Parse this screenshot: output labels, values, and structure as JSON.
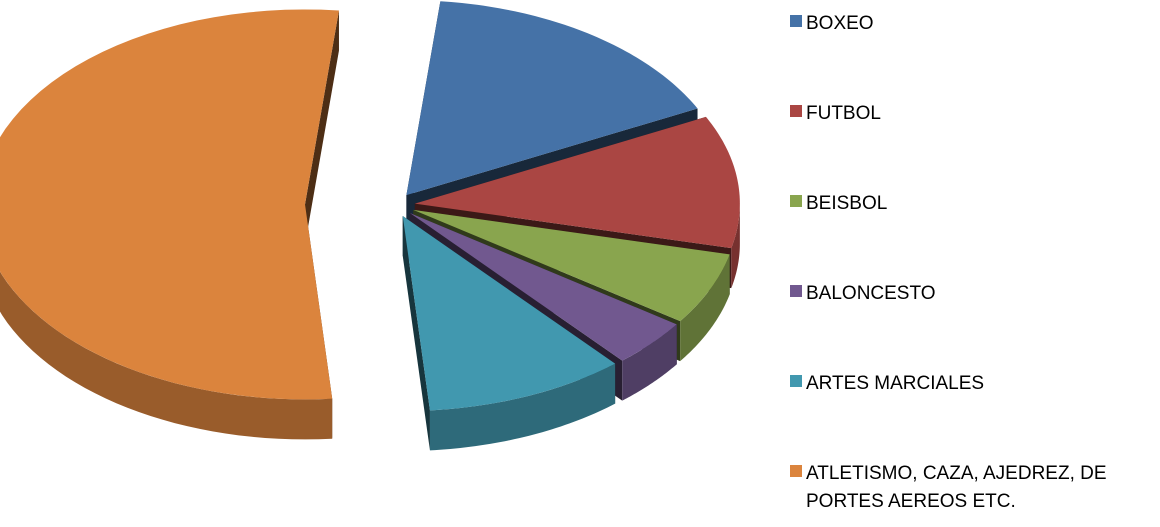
{
  "chart_data": {
    "type": "pie",
    "title": "",
    "style": "3d-exploded",
    "legend_position": "right",
    "categories": [
      "BOXEO",
      "FUTBOL",
      "BEISBOL",
      "BALONCESTO",
      "ARTES MARCIALES",
      "ATLETISMO, CAZA, AJEDREZ, DEPORTES AEREOS ETC."
    ],
    "legend_lines": [
      [
        "BOXEO"
      ],
      [
        "FUTBOL"
      ],
      [
        "BEISBOL"
      ],
      [
        "BALONCESTO"
      ],
      [
        "ARTES MARCIALES"
      ],
      [
        "ATLETISMO, CAZA, AJEDREZ, DE",
        "PORTES AEREOS ETC."
      ]
    ],
    "values": [
      16,
      11,
      6,
      4,
      10,
      53
    ],
    "colors": [
      "#4572A7",
      "#AA4643",
      "#89A54E",
      "#71588F",
      "#4198AF",
      "#DB843D"
    ]
  }
}
